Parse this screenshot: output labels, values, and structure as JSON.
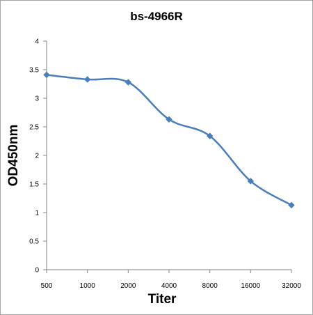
{
  "chart_data": {
    "type": "line",
    "title": "bs-4966R",
    "xlabel": "Titer",
    "ylabel": "OD450nm",
    "categories": [
      "500",
      "1000",
      "2000",
      "4000",
      "8000",
      "16000",
      "32000"
    ],
    "series": [
      {
        "values": [
          3.41,
          3.33,
          3.28,
          2.63,
          2.34,
          1.55,
          1.13
        ]
      }
    ],
    "ylim": [
      0,
      4
    ],
    "yticks": [
      "0",
      "0.5",
      "1",
      "1.5",
      "2",
      "2.5",
      "3",
      "3.5",
      "4"
    ],
    "grid": false,
    "legend": "none",
    "line_color": "#4a7ebb"
  }
}
